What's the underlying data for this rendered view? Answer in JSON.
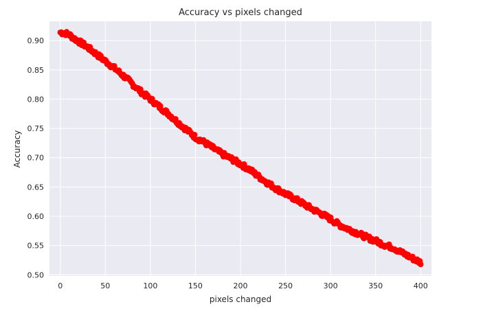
{
  "chart_data": {
    "type": "scatter",
    "title": "Accuracy vs pixels changed",
    "xlabel": "pixels changed",
    "ylabel": "Accuracy",
    "xlim": [
      -12,
      412
    ],
    "ylim": [
      0.498,
      0.933
    ],
    "xticks": [
      0,
      50,
      100,
      150,
      200,
      250,
      300,
      350,
      400
    ],
    "yticks": [
      0.5,
      0.55,
      0.6,
      0.65,
      0.7,
      0.75,
      0.8,
      0.85,
      0.9
    ],
    "grid": true,
    "marker_color": "#ff0000",
    "background_color": "#eaeaf2",
    "grid_color": "#ffffff",
    "anchors": [
      [
        0,
        0.914
      ],
      [
        5,
        0.913
      ],
      [
        10,
        0.91
      ],
      [
        15,
        0.904
      ],
      [
        20,
        0.899
      ],
      [
        30,
        0.889
      ],
      [
        40,
        0.877
      ],
      [
        50,
        0.865
      ],
      [
        60,
        0.853
      ],
      [
        70,
        0.84
      ],
      [
        80,
        0.826
      ],
      [
        90,
        0.812
      ],
      [
        100,
        0.8
      ],
      [
        110,
        0.787
      ],
      [
        120,
        0.775
      ],
      [
        130,
        0.761
      ],
      [
        140,
        0.748
      ],
      [
        150,
        0.735
      ],
      [
        160,
        0.726
      ],
      [
        170,
        0.716
      ],
      [
        180,
        0.706
      ],
      [
        190,
        0.698
      ],
      [
        200,
        0.689
      ],
      [
        210,
        0.68
      ],
      [
        220,
        0.668
      ],
      [
        230,
        0.657
      ],
      [
        240,
        0.647
      ],
      [
        250,
        0.638
      ],
      [
        260,
        0.63
      ],
      [
        270,
        0.621
      ],
      [
        280,
        0.612
      ],
      [
        290,
        0.604
      ],
      [
        300,
        0.595
      ],
      [
        310,
        0.585
      ],
      [
        320,
        0.578
      ],
      [
        330,
        0.571
      ],
      [
        340,
        0.564
      ],
      [
        350,
        0.558
      ],
      [
        360,
        0.551
      ],
      [
        370,
        0.546
      ],
      [
        380,
        0.537
      ],
      [
        390,
        0.529
      ],
      [
        400,
        0.521
      ]
    ]
  }
}
